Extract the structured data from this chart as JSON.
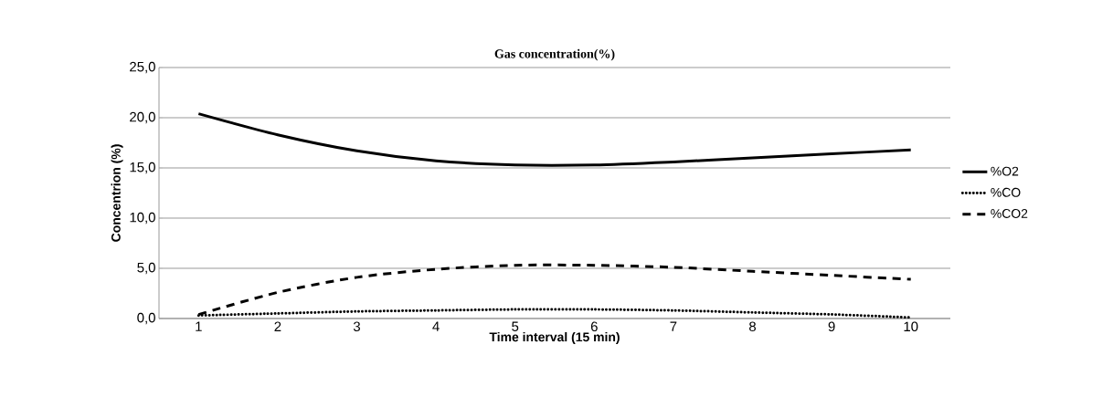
{
  "chart_data": {
    "type": "line",
    "title": "Gas concentration(%)",
    "xlabel": "Time interval (15 min)",
    "ylabel": "Concentrion (%)",
    "categories": [
      "1",
      "2",
      "3",
      "4",
      "5",
      "6",
      "7",
      "8",
      "9",
      "10"
    ],
    "series": [
      {
        "name": "%O2",
        "color": "#000000",
        "line_style": "solid",
        "values": [
          20.4,
          18.3,
          16.7,
          15.7,
          15.3,
          15.3,
          15.6,
          16.0,
          16.4,
          16.8
        ]
      },
      {
        "name": "%CO",
        "color": "#000000",
        "line_style": "dotted",
        "values": [
          0.3,
          0.5,
          0.7,
          0.8,
          0.9,
          0.9,
          0.8,
          0.6,
          0.4,
          0.1
        ]
      },
      {
        "name": "%CO2",
        "color": "#000000",
        "line_style": "dashed",
        "values": [
          0.4,
          2.6,
          4.1,
          4.9,
          5.3,
          5.3,
          5.1,
          4.7,
          4.3,
          3.9
        ]
      }
    ],
    "ylim": [
      0,
      25
    ],
    "yticks": [
      {
        "value": 0,
        "label": "0,0"
      },
      {
        "value": 5,
        "label": "5,0"
      },
      {
        "value": 10,
        "label": "10,0"
      },
      {
        "value": 15,
        "label": "15,0"
      },
      {
        "value": 20,
        "label": "20,0"
      },
      {
        "value": 25,
        "label": "25,0"
      }
    ],
    "grid": "y",
    "legend": "right",
    "marker": "none"
  }
}
